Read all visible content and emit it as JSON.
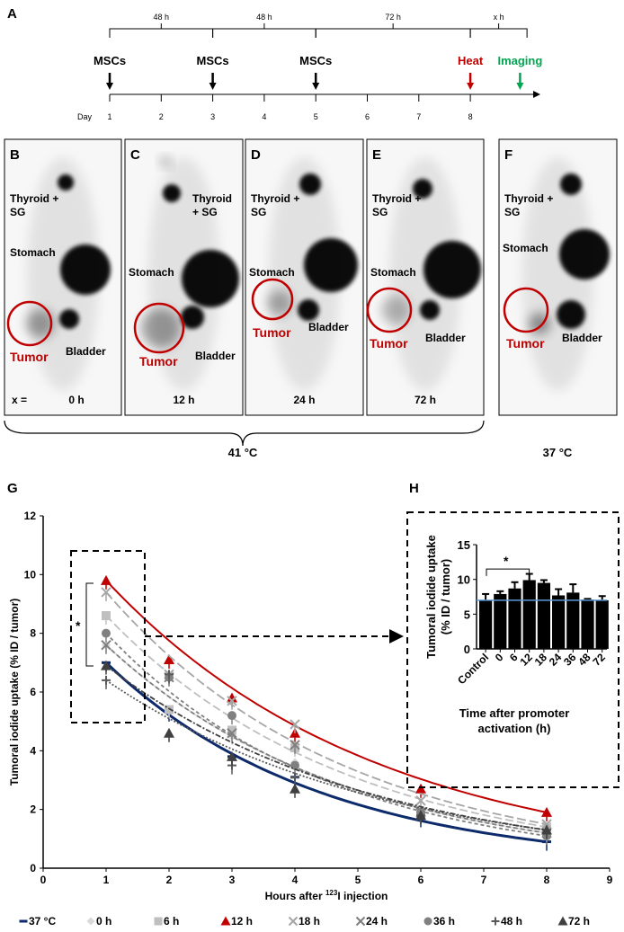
{
  "panel_labels": {
    "A": "A",
    "B": "B",
    "C": "C",
    "D": "D",
    "E": "E",
    "F": "F",
    "G": "G",
    "H": "H"
  },
  "timeline": {
    "intervals": [
      "48 h",
      "48 h",
      "72 h",
      "x h"
    ],
    "events": [
      {
        "label": "MSCs",
        "day": 1,
        "color": "#000000"
      },
      {
        "label": "MSCs",
        "day": 3,
        "color": "#000000"
      },
      {
        "label": "MSCs",
        "day": 5,
        "color": "#000000"
      },
      {
        "label": "Heat",
        "day": 8,
        "color": "#c00000"
      },
      {
        "label": "Imaging",
        "day": 9,
        "color": "#00a650"
      }
    ],
    "day_label": "Day",
    "days": [
      "1",
      "2",
      "3",
      "4",
      "5",
      "6",
      "7",
      "8"
    ]
  },
  "images": [
    {
      "thyroid": "Thyroid +",
      "sg": "SG",
      "stomach": "Stomach",
      "tumor": "Tumor",
      "bladder": "Bladder",
      "x_prefix": "x  =",
      "time": "0 h"
    },
    {
      "thyroid": "Thyroid",
      "sg": "+ SG",
      "stomach": "Stomach",
      "tumor": "Tumor",
      "bladder": "Bladder",
      "time": "12 h"
    },
    {
      "thyroid": "Thyroid +",
      "sg": "SG",
      "stomach": "Stomach",
      "tumor": "Tumor",
      "bladder": "Bladder",
      "time": "24 h"
    },
    {
      "thyroid": "Thyroid +",
      "sg": "SG",
      "stomach": "Stomach",
      "tumor": "Tumor",
      "bladder": "Bladder",
      "time": "72 h"
    },
    {
      "thyroid": "Thyroid +",
      "sg": "SG",
      "stomach": "Stomach",
      "tumor": "Tumor",
      "bladder": "Bladder",
      "time": ""
    }
  ],
  "temp_labels": {
    "heated": "41 °C",
    "control": "37 °C"
  },
  "tumor_color": "#c00000",
  "chart_data": [
    {
      "type": "line",
      "panel": "G",
      "xlabel_pre": "Hours after ",
      "xlabel_sup": "123",
      "xlabel_post": "I injection",
      "ylabel": "Tumoral iodide uptake (% ID / tumor)",
      "xlim": [
        0,
        9
      ],
      "ylim": [
        0,
        12
      ],
      "xticks": [
        0,
        1,
        2,
        3,
        4,
        5,
        6,
        7,
        8,
        9
      ],
      "yticks": [
        0,
        2,
        4,
        6,
        8,
        10,
        12
      ],
      "significance": "*",
      "legend_position": "bottom",
      "x": [
        1,
        2,
        3,
        4,
        6,
        8
      ],
      "series": [
        {
          "name": "37 °C",
          "color": "#0d2a6b",
          "marker": "dash",
          "values": [
            7.0,
            5.3,
            3.8,
            3.1,
            1.7,
            0.9
          ]
        },
        {
          "name": "0 h",
          "color": "#d9d9d9",
          "marker": "diamond",
          "values": [
            7.6,
            5.4,
            4.5,
            3.6,
            2.0,
            1.2
          ]
        },
        {
          "name": "6 h",
          "color": "#bfbfbf",
          "marker": "square",
          "values": [
            8.6,
            5.4,
            4.7,
            4.1,
            1.8,
            1.4
          ]
        },
        {
          "name": "12 h",
          "color": "#c00000",
          "marker": "triangle",
          "values": [
            9.8,
            7.1,
            5.8,
            4.6,
            2.7,
            1.9
          ]
        },
        {
          "name": "18 h",
          "color": "#a6a6a6",
          "marker": "x",
          "values": [
            9.4,
            6.6,
            5.7,
            4.9,
            2.3,
            1.5
          ]
        },
        {
          "name": "24 h",
          "color": "#7f7f7f",
          "marker": "x",
          "values": [
            7.6,
            6.5,
            4.6,
            4.2,
            1.9,
            1.2
          ]
        },
        {
          "name": "36 h",
          "color": "#808080",
          "marker": "circle",
          "values": [
            8.0,
            6.5,
            5.2,
            3.5,
            1.9,
            1.1
          ]
        },
        {
          "name": "48 h",
          "color": "#595959",
          "marker": "plus",
          "values": [
            6.4,
            6.6,
            3.5,
            3.1,
            1.8,
            1.3
          ]
        },
        {
          "name": "72 h",
          "color": "#404040",
          "marker": "triangle",
          "values": [
            6.9,
            4.6,
            3.8,
            2.7,
            1.8,
            1.3
          ]
        }
      ]
    },
    {
      "type": "bar",
      "panel": "H",
      "ylabel_1": "Tumoral iodide uptake",
      "ylabel_2": "(% ID / tumor)",
      "xlabel_1": "Time after promoter",
      "xlabel_2": "activation (h)",
      "ylim": [
        0,
        15
      ],
      "yticks": [
        0,
        5,
        10,
        15
      ],
      "significance": "*",
      "reference_line": 7.0,
      "reference_color": "#5b9bd5",
      "categories": [
        "Control",
        "0",
        "6",
        "12",
        "18",
        "24",
        "36",
        "48",
        "72"
      ],
      "values": [
        7.0,
        7.9,
        8.7,
        9.9,
        9.5,
        7.7,
        8.1,
        7.1,
        7.0
      ],
      "errors": [
        0.9,
        0.4,
        0.9,
        0.9,
        0.4,
        0.9,
        1.2,
        0.1,
        0.6
      ]
    }
  ]
}
